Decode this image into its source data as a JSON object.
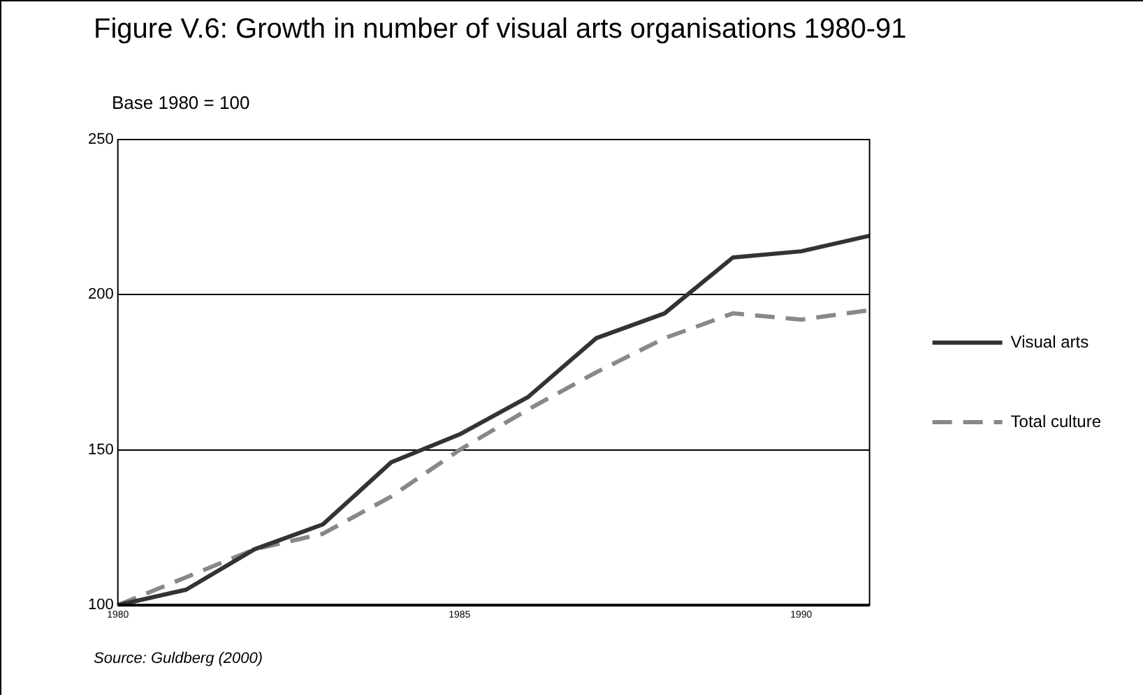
{
  "chart_data": {
    "type": "line",
    "title": "Figure V.6: Growth in number of visual arts organisations 1980-91",
    "ylabel": "Base 1980 = 100",
    "annotations": [
      "Source: Guldberg (2000)"
    ],
    "x": [
      1980,
      1981,
      1982,
      1983,
      1984,
      1985,
      1986,
      1987,
      1988,
      1989,
      1990,
      1991
    ],
    "series": [
      {
        "name": "Visual arts",
        "color": "#333333",
        "line_style": "solid",
        "values": [
          100,
          105,
          118,
          126,
          146,
          155,
          167,
          186,
          194,
          212,
          214,
          219
        ]
      },
      {
        "name": "Total culture",
        "color": "#888888",
        "line_style": "dashed",
        "values": [
          100,
          109,
          118,
          123,
          135,
          150,
          163,
          175,
          186,
          194,
          192,
          195
        ]
      }
    ],
    "xlim": [
      1980,
      1991
    ],
    "xticks": [
      1980,
      1985,
      1990
    ],
    "ylim": [
      100,
      250
    ],
    "yticks": [
      100,
      150,
      200,
      250
    ],
    "grid": "y",
    "legend": "right",
    "marker": "none"
  }
}
